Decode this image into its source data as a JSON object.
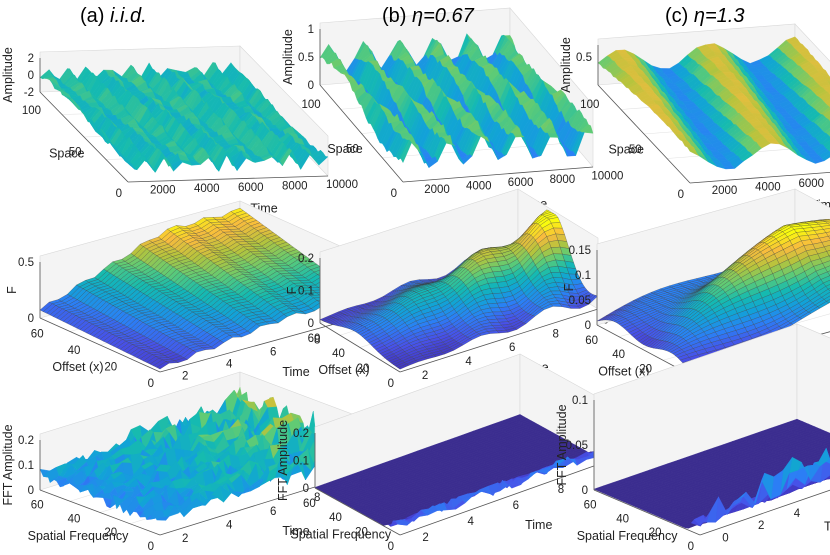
{
  "chart_data": [
    {
      "type": "surface",
      "panel": "a",
      "row": 1,
      "title_prefix": "(a)",
      "title_param": "i.i.d.",
      "zlabel": "Amplitude",
      "xlabel": "Space",
      "ylabel": "Time",
      "z_ticks": [
        "2",
        "0",
        "-2"
      ],
      "x_ticks": [
        "100",
        "50",
        "0"
      ],
      "y_ticks": [
        "2000",
        "4000",
        "6000",
        "8000",
        "10000"
      ],
      "zlim": [
        -2,
        2
      ],
      "xlim": [
        0,
        128
      ],
      "ylim": [
        0,
        10000
      ],
      "colormap": "parula"
    },
    {
      "type": "surface",
      "panel": "b",
      "row": 1,
      "title_prefix": "(b)",
      "title_param": "η=0.67",
      "zlabel": "Amplitude",
      "xlabel": "Space",
      "ylabel": "Time",
      "z_ticks": [
        "1",
        "0.5",
        "0"
      ],
      "x_ticks": [
        "100",
        "50",
        "0"
      ],
      "y_ticks": [
        "2000",
        "4000",
        "6000",
        "8000",
        "10000"
      ],
      "zlim": [
        0,
        1
      ],
      "xlim": [
        0,
        128
      ],
      "ylim": [
        0,
        10000
      ],
      "colormap": "parula"
    },
    {
      "type": "surface",
      "panel": "c",
      "row": 1,
      "title_prefix": "(c)",
      "title_param": "η=1.3",
      "zlabel": "Amplitude",
      "xlabel": "Space",
      "ylabel": "Time",
      "z_ticks": [
        "0.5"
      ],
      "x_ticks": [
        "100",
        "50",
        "0"
      ],
      "y_ticks": [
        "2000",
        "4000",
        "6000",
        "8000",
        "10000"
      ],
      "zlim": [
        0,
        0.7
      ],
      "xlim": [
        0,
        128
      ],
      "ylim": [
        0,
        10000
      ],
      "colormap": "parula"
    },
    {
      "type": "surface",
      "panel": "a",
      "row": 2,
      "zlabel": "F",
      "xlabel": "Offset (x)",
      "ylabel": "Time",
      "z_ticks": [
        "0.5",
        "0"
      ],
      "x_ticks": [
        "60",
        "40",
        "20",
        "0"
      ],
      "y_ticks": [
        "2",
        "4",
        "6",
        "8",
        "10"
      ],
      "zlim": [
        0,
        0.6
      ],
      "xlim": [
        0,
        60
      ],
      "ylim": [
        1,
        10
      ],
      "colormap": "parula"
    },
    {
      "type": "surface",
      "panel": "b",
      "row": 2,
      "zlabel": "F",
      "xlabel": "Offset (x)",
      "ylabel": "Time",
      "z_ticks": [
        "0.2",
        "0.1",
        "0"
      ],
      "x_ticks": [
        "60",
        "40",
        "20",
        "0"
      ],
      "y_ticks": [
        "2",
        "4",
        "6",
        "8",
        "10"
      ],
      "zlim": [
        0,
        0.2
      ],
      "xlim": [
        0,
        60
      ],
      "ylim": [
        1,
        10
      ],
      "colormap": "parula"
    },
    {
      "type": "surface",
      "panel": "c",
      "row": 2,
      "zlabel": "F",
      "xlabel": "Offset (x)",
      "ylabel": "Time",
      "z_ticks": [
        "0.15",
        "0.1",
        "0.05",
        "0"
      ],
      "x_ticks": [
        "60",
        "40",
        "20",
        "0"
      ],
      "y_ticks": [
        "2",
        "4",
        "6",
        "8",
        "10"
      ],
      "zlim": [
        0,
        0.15
      ],
      "xlim": [
        0,
        60
      ],
      "ylim": [
        1,
        10
      ],
      "colormap": "parula"
    },
    {
      "type": "surface",
      "panel": "a",
      "row": 3,
      "zlabel": "FFT Amplitude",
      "xlabel": "Spatial Frequency",
      "ylabel": "Time",
      "z_ticks": [
        "0.2",
        "0.1",
        "0"
      ],
      "x_ticks": [
        "60",
        "40",
        "20",
        "0"
      ],
      "y_ticks": [
        "2",
        "4",
        "6",
        "8",
        "10"
      ],
      "zlim": [
        0,
        0.2
      ],
      "xlim": [
        0,
        64
      ],
      "ylim": [
        1,
        10
      ],
      "colormap": "parula"
    },
    {
      "type": "surface",
      "panel": "b",
      "row": 3,
      "zlabel": "FFT Amplitude",
      "xlabel": "Spatial Frequency",
      "ylabel": "Time",
      "z_ticks": [
        "0.2",
        "0.1",
        "0"
      ],
      "x_ticks": [
        "60",
        "40",
        "20",
        "0"
      ],
      "y_ticks": [
        "2",
        "4",
        "6",
        "8",
        "10"
      ],
      "zlim": [
        0,
        0.2
      ],
      "xlim": [
        0,
        64
      ],
      "ylim": [
        1,
        10
      ],
      "colormap": "parula"
    },
    {
      "type": "surface",
      "panel": "c",
      "row": 3,
      "zlabel": "FFT Amplitude",
      "xlabel": "Spatial Frequency",
      "ylabel": "Time",
      "z_ticks": [
        "0.1",
        "0.05",
        "0"
      ],
      "x_ticks": [
        "60",
        "40",
        "20",
        "0"
      ],
      "y_ticks": [
        "0",
        "2",
        "4",
        "6",
        "8",
        "10"
      ],
      "zlim": [
        0,
        0.1
      ],
      "xlim": [
        0,
        64
      ],
      "ylim": [
        0,
        10
      ],
      "colormap": "parula"
    }
  ]
}
